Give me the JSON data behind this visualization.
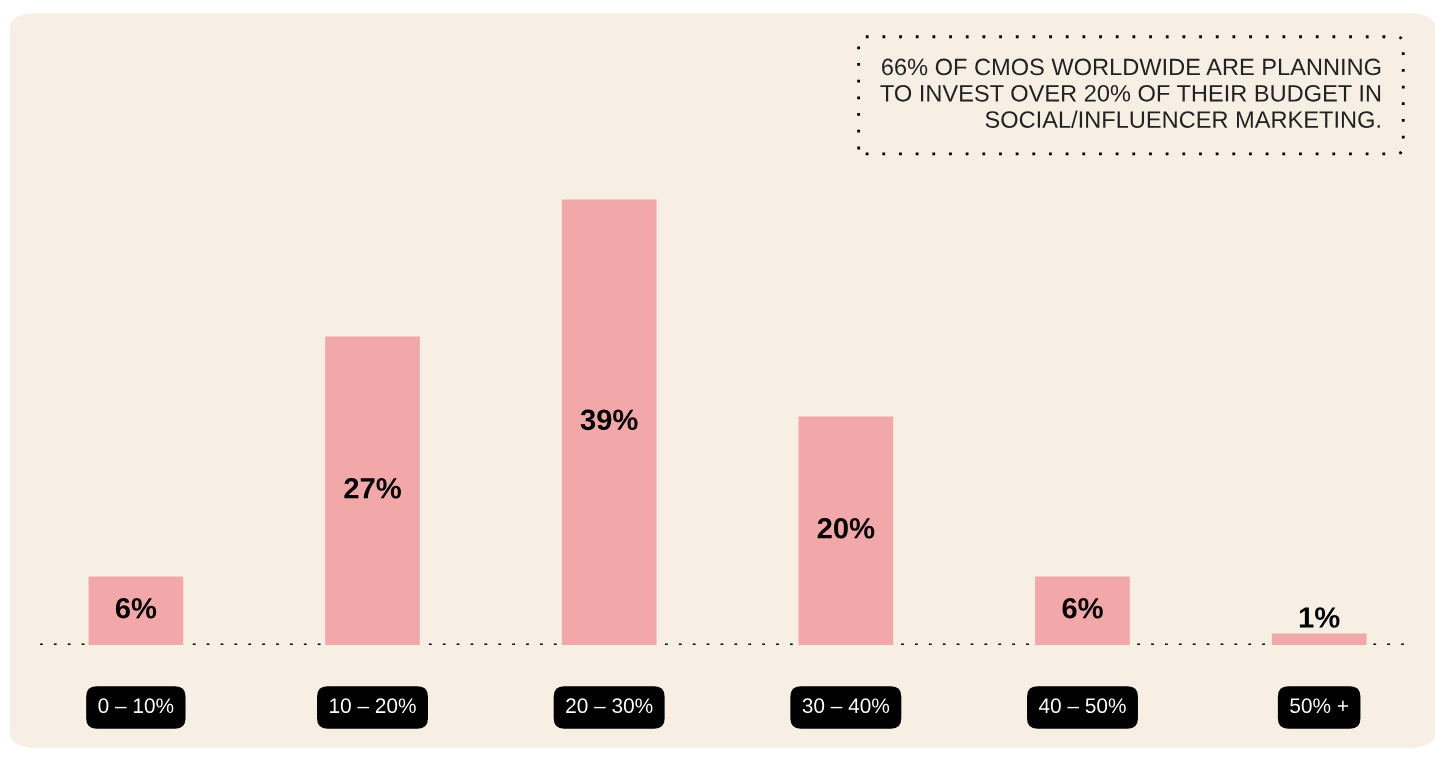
{
  "chart_data": {
    "type": "bar",
    "categories": [
      "0 – 10%",
      "10 – 20%",
      "20 – 30%",
      "30 – 40%",
      "40 – 50%",
      "50% +"
    ],
    "values": [
      6,
      27,
      39,
      20,
      6,
      1
    ],
    "value_labels": [
      "6%",
      "27%",
      "39%",
      "20%",
      "6%",
      "1%"
    ],
    "color": "#f2a7a8",
    "annotations": [
      "66% OF CMOS WORLDWIDE ARE PLANNING\nTO INVEST OVER 20% OF THEIR BUDGET IN\nSOCIAL/INFLUENCER MARKETING."
    ],
    "grid": false,
    "legend": false
  }
}
